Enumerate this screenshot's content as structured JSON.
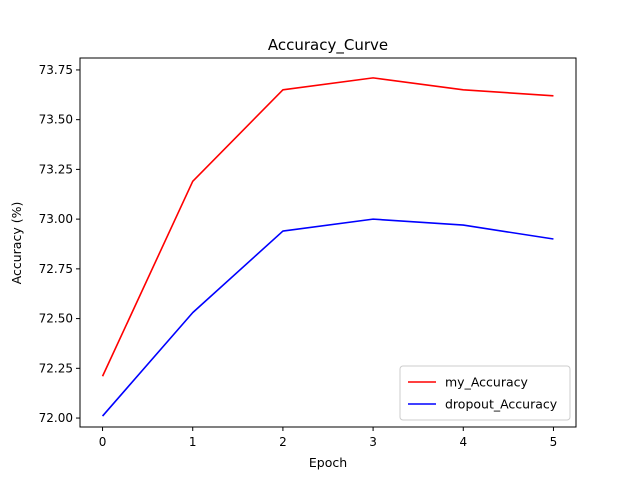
{
  "chart_data": {
    "type": "line",
    "title": "Accuracy_Curve",
    "xlabel": "Epoch",
    "ylabel": "Accuracy (%)",
    "x": [
      0,
      1,
      2,
      3,
      4,
      5
    ],
    "xticks": [
      "0",
      "1",
      "2",
      "3",
      "4",
      "5"
    ],
    "yticks": [
      "72.00",
      "72.25",
      "72.50",
      "72.75",
      "73.00",
      "73.25",
      "73.50",
      "73.75"
    ],
    "xlim": [
      -0.25,
      5.25
    ],
    "ylim": [
      71.955,
      73.81
    ],
    "grid": false,
    "legend_position": "lower-right",
    "series": [
      {
        "name": "my_Accuracy",
        "color": "#ff0000",
        "values": [
          72.21,
          73.19,
          73.65,
          73.71,
          73.65,
          73.62
        ]
      },
      {
        "name": "dropout_Accuracy",
        "color": "#0000ff",
        "values": [
          72.01,
          72.53,
          72.94,
          73.0,
          72.97,
          72.9
        ]
      }
    ]
  }
}
